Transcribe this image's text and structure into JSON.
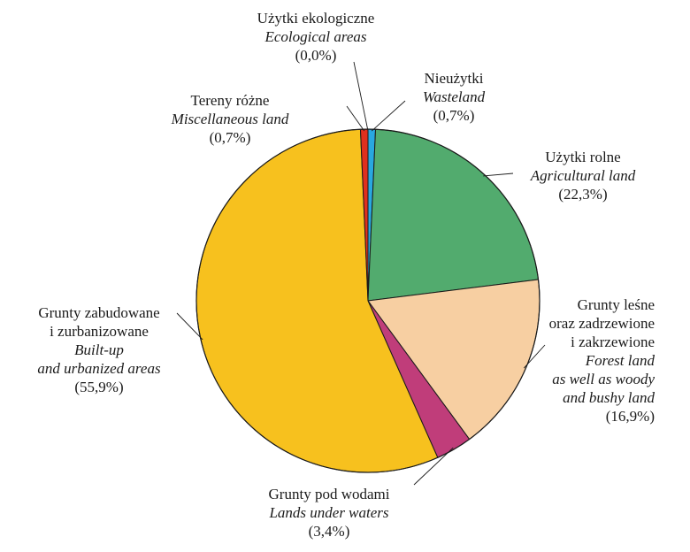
{
  "chart_data": {
    "type": "pie",
    "title": "",
    "start_angle_deg": 0,
    "direction": "clockwise",
    "slices": [
      {
        "pl": [
          "Nieużytki"
        ],
        "en": [
          "Wasteland"
        ],
        "pct_label": "(0,7%)",
        "value": 0.7,
        "color": "#29a8e0"
      },
      {
        "pl": [
          "Użytki rolne"
        ],
        "en": [
          "Agricultural land"
        ],
        "pct_label": "(22,3%)",
        "value": 22.3,
        "color": "#52ab6e"
      },
      {
        "pl": [
          "Grunty leśne",
          "oraz zadrzewione",
          "i zakrzewione"
        ],
        "en": [
          "Forest land",
          "as well as woody",
          "and bushy land"
        ],
        "pct_label": "(16,9%)",
        "value": 16.9,
        "color": "#f7cfa2"
      },
      {
        "pl": [
          "Grunty pod wodami"
        ],
        "en": [
          "Lands under waters"
        ],
        "pct_label": "(3,4%)",
        "value": 3.4,
        "color": "#c03d7a"
      },
      {
        "pl": [
          "Grunty zabudowane",
          "i zurbanizowane"
        ],
        "en": [
          "Built-up",
          "and urbanized areas"
        ],
        "pct_label": "(55,9%)",
        "value": 55.9,
        "color": "#f7c11e"
      },
      {
        "pl": [
          "Tereny różne"
        ],
        "en": [
          "Miscellaneous land"
        ],
        "pct_label": "(0,7%)",
        "value": 0.7,
        "color": "#e0301e"
      },
      {
        "pl": [
          "Użytki ekologiczne"
        ],
        "en": [
          "Ecological areas"
        ],
        "pct_label": "(0,0%)",
        "value": 0.0,
        "color": "#1a1a1a"
      }
    ]
  }
}
